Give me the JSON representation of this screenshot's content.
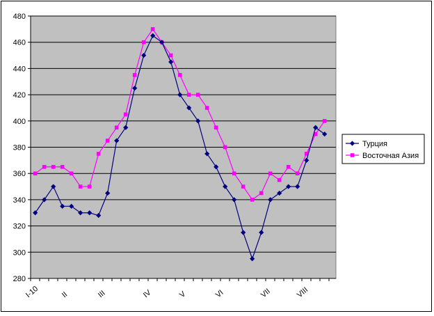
{
  "chart_data": {
    "type": "line",
    "title": "",
    "xlabel": "",
    "ylabel": "",
    "ylim": [
      280,
      480
    ],
    "ytick_step": 20,
    "grid": true,
    "legend_position": "right",
    "plot_background": "#c0c0c0",
    "x_tick_labels": [
      {
        "label": "I-10",
        "index": 0
      },
      {
        "label": "II",
        "index": 4
      },
      {
        "label": "III",
        "index": 8
      },
      {
        "label": "IV",
        "index": 13
      },
      {
        "label": "V",
        "index": 17
      },
      {
        "label": "VI",
        "index": 21
      },
      {
        "label": "VII",
        "index": 26
      },
      {
        "label": "VIII",
        "index": 30
      }
    ],
    "series": [
      {
        "name": "Турция",
        "color": "#000080",
        "marker": "diamond",
        "values": [
          330,
          340,
          350,
          335,
          335,
          330,
          330,
          328,
          345,
          385,
          395,
          425,
          450,
          465,
          460,
          445,
          420,
          410,
          400,
          375,
          365,
          350,
          340,
          315,
          295,
          315,
          340,
          345,
          350,
          350,
          370,
          395,
          390
        ]
      },
      {
        "name": "Восточная Азия",
        "color": "#ff00ff",
        "marker": "square",
        "values": [
          360,
          365,
          365,
          365,
          360,
          350,
          350,
          375,
          385,
          395,
          405,
          435,
          460,
          470,
          460,
          450,
          435,
          420,
          420,
          410,
          395,
          380,
          360,
          350,
          340,
          345,
          360,
          355,
          365,
          360,
          375,
          390,
          400
        ]
      }
    ]
  }
}
